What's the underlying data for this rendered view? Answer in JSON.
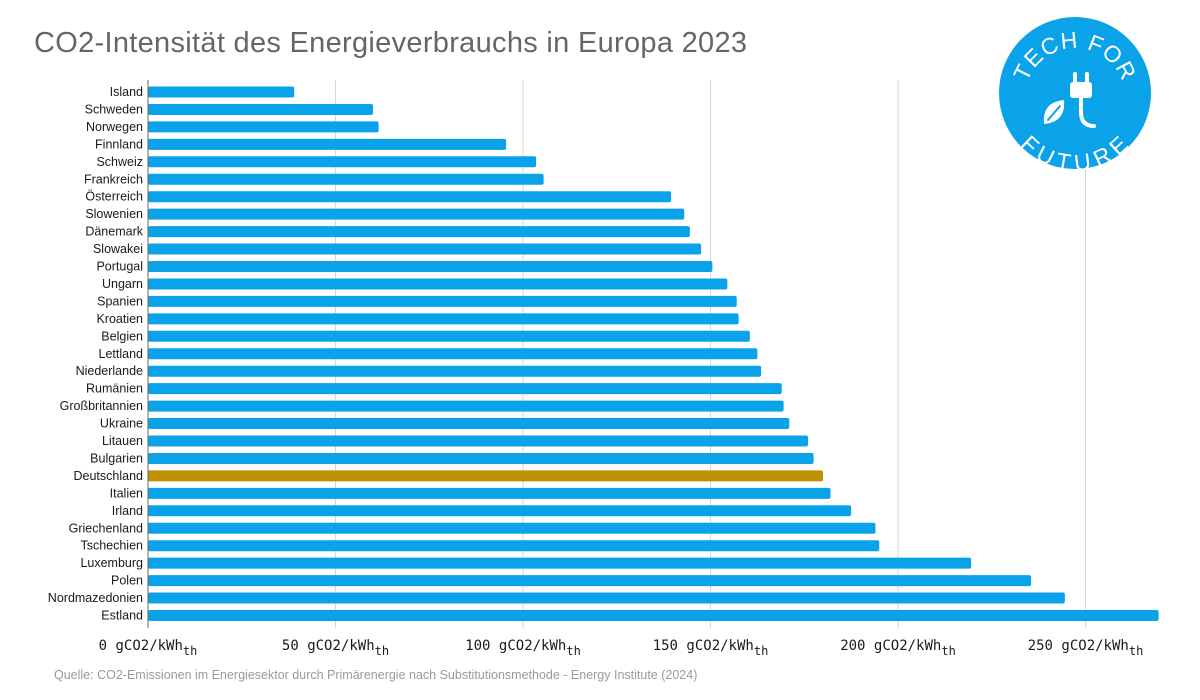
{
  "title": "CO2-Intensität des Energieverbrauchs in Europa 2023",
  "source": "Quelle: CO2-Emissionen im Energiesektor durch Primärenergie nach Substitutionsmethode - Energy Institute (2024)",
  "logo": {
    "top_text": "TECH FOR",
    "bottom_text": "FUTURE",
    "icon": "plug-leaf-icon",
    "color": "#0aa3ea"
  },
  "colors": {
    "bar": "#0aa3ea",
    "highlight": "#bf9000",
    "grid": "#d6d6d6",
    "axis": "#666666"
  },
  "chart_data": {
    "type": "bar",
    "orientation": "horizontal",
    "title": "CO2-Intensität des Energieverbrauchs in Europa 2023",
    "xlabel": "",
    "ylabel": "",
    "xlim": [
      0,
      275
    ],
    "grid": true,
    "legend": "none",
    "tick_values": [
      0,
      50,
      100,
      150,
      200,
      250
    ],
    "tick_labels": [
      {
        "main": "0 gCO2/kWh",
        "sub": "th"
      },
      {
        "main": "50 gCO2/kWh",
        "sub": "th"
      },
      {
        "main": "100 gCO2/kWh",
        "sub": "th"
      },
      {
        "main": "150 gCO2/kWh",
        "sub": "th"
      },
      {
        "main": "200 gCO2/kWh",
        "sub": "th"
      },
      {
        "main": "250 gCO2/kWh",
        "sub": "th"
      }
    ],
    "highlight": "Deutschland",
    "categories": [
      "Island",
      "Schweden",
      "Norwegen",
      "Finnland",
      "Schweiz",
      "Frankreich",
      "Österreich",
      "Slowenien",
      "Dänemark",
      "Slowakei",
      "Portugal",
      "Ungarn",
      "Spanien",
      "Kroatien",
      "Belgien",
      "Lettland",
      "Niederlande",
      "Rumänien",
      "Großbritannien",
      "Ukraine",
      "Litauen",
      "Bulgarien",
      "Deutschland",
      "Italien",
      "Irland",
      "Griechenland",
      "Tschechien",
      "Luxemburg",
      "Polen",
      "Nordmazedonien",
      "Estland"
    ],
    "values": [
      39,
      60,
      61.5,
      95.5,
      103.5,
      105.5,
      139.5,
      143,
      144.5,
      147.5,
      150.5,
      154.5,
      157,
      157.5,
      160.5,
      162.5,
      163.5,
      169,
      169.5,
      171,
      176,
      177.5,
      180,
      182,
      187.5,
      194,
      195,
      219.5,
      235.5,
      244.5,
      269.5
    ]
  }
}
